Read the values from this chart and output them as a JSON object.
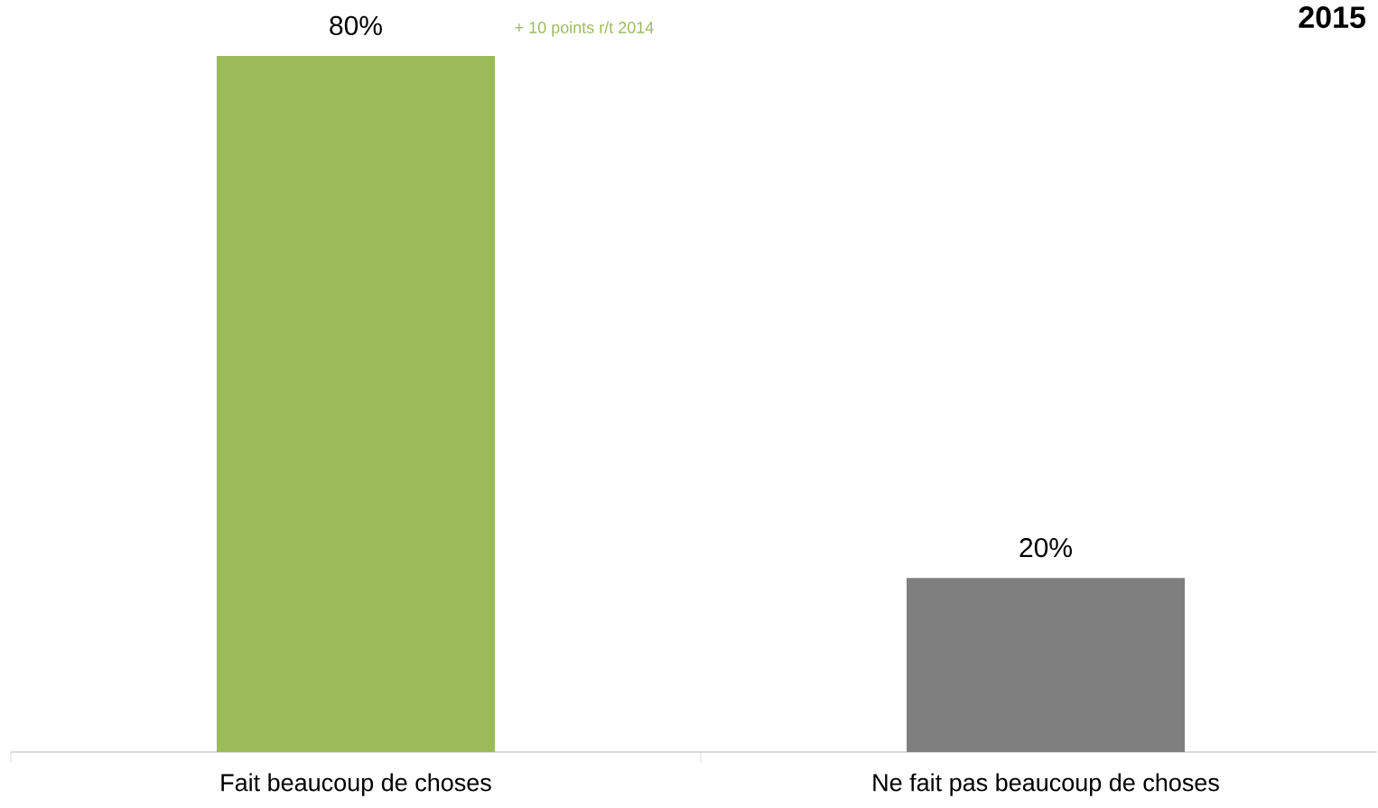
{
  "chart_data": {
    "type": "bar",
    "title": "2015",
    "categories": [
      "Fait beaucoup de choses",
      "Ne fait pas beaucoup de choses"
    ],
    "values": [
      80,
      20
    ],
    "colors": [
      "#9bbb59",
      "#7f7f7f"
    ],
    "value_labels": [
      "80%",
      "20%"
    ],
    "annotations": [
      "+ 10 points r/t 2014"
    ]
  }
}
